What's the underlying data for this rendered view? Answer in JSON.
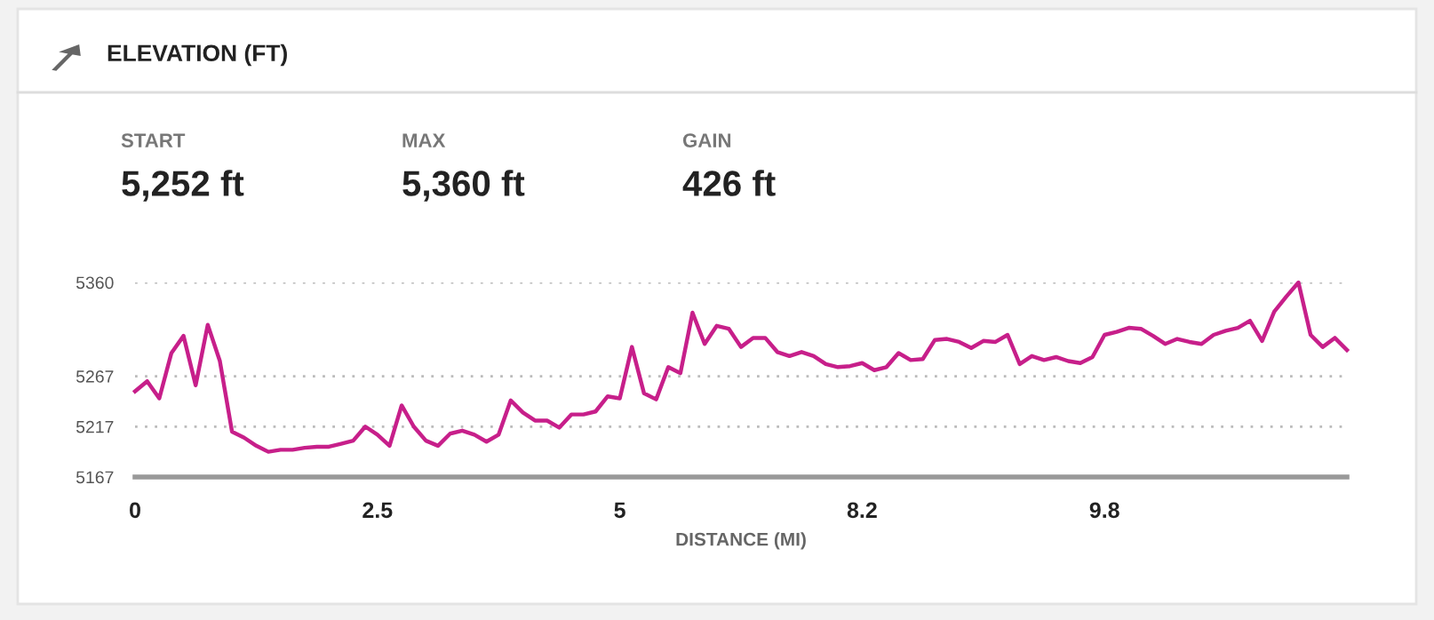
{
  "chart_data": {
    "type": "line",
    "title": "ELEVATION (FT)",
    "annotations": [
      "START",
      "5,252 ft",
      "MAX",
      "5,360 ft",
      "GAIN",
      "426 ft"
    ],
    "xlabel": "DISTANCE (MI)",
    "categories": [
      "0",
      null,
      null,
      null,
      null,
      null,
      null,
      null,
      null,
      null,
      null,
      null,
      null,
      null,
      null,
      null,
      null,
      null,
      null,
      null,
      "2.5",
      null,
      null,
      null,
      null,
      null,
      null,
      null,
      null,
      null,
      null,
      null,
      null,
      null,
      null,
      null,
      null,
      null,
      null,
      null,
      "5",
      null,
      null,
      null,
      null,
      null,
      null,
      null,
      null,
      null,
      null,
      null,
      null,
      null,
      null,
      null,
      null,
      null,
      null,
      null,
      "8.2",
      null,
      null,
      null,
      null,
      null,
      null,
      null,
      null,
      null,
      null,
      null,
      null,
      null,
      null,
      null,
      null,
      null,
      null,
      null,
      "9.8",
      null,
      null,
      null,
      null,
      null,
      null,
      null,
      null,
      null,
      null,
      null,
      null,
      null,
      null,
      null,
      null,
      null,
      null,
      null,
      null
    ],
    "series": [
      {
        "color": "#c71f8a",
        "values": [
          5252,
          5262,
          5245,
          5290,
          5307,
          5258,
          5318,
          5282,
          5212,
          5206,
          5198,
          5192,
          5194,
          5194,
          5196,
          5197,
          5197,
          5200,
          5203,
          5217,
          5209,
          5198,
          5238,
          5217,
          5203,
          5198,
          5210,
          5213,
          5209,
          5202,
          5209,
          5243,
          5231,
          5223,
          5223,
          5216,
          5229,
          5229,
          5232,
          5247,
          5245,
          5296,
          5250,
          5244,
          5276,
          5270,
          5330,
          5299,
          5317,
          5314,
          5296,
          5305,
          5305,
          5291,
          5287,
          5291,
          5287,
          5279,
          5276,
          5277,
          5280,
          5273,
          5276,
          5290,
          5283,
          5284,
          5303,
          5304,
          5301,
          5295,
          5302,
          5301,
          5308,
          5279,
          5287,
          5283,
          5286,
          5282,
          5280,
          5286,
          5308,
          5311,
          5315,
          5314,
          5307,
          5299,
          5304,
          5301,
          5299,
          5308,
          5312,
          5315,
          5322,
          5302,
          5331,
          5346,
          5360,
          5308,
          5296,
          5305,
          5293
        ]
      }
    ],
    "ylim": [
      5167,
      5360
    ],
    "yticks": [
      5167,
      5217,
      5267,
      5360
    ],
    "grid": "y",
    "line_style": "solid",
    "marker": "none"
  }
}
